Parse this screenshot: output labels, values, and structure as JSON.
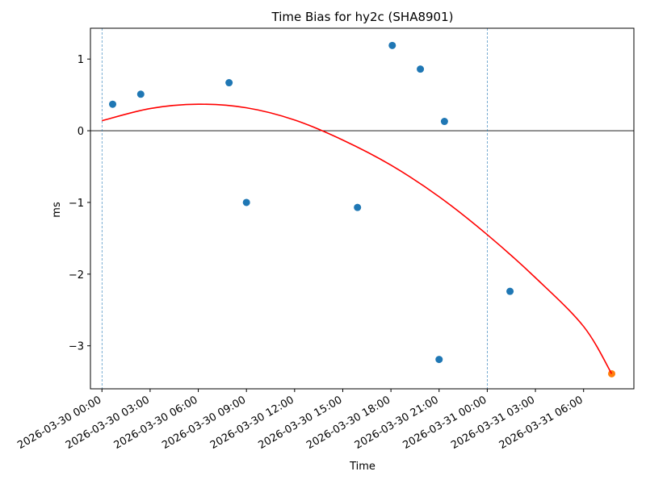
{
  "chart_data": {
    "type": "scatter",
    "title": "Time Bias for hy2c (SHA8901)",
    "xlabel": "Time",
    "ylabel": "ms",
    "x_unit": "datetime",
    "xlim": [
      "2026-03-29 23:17",
      "2026-03-31 09:08"
    ],
    "ylim": [
      -3.6,
      1.43
    ],
    "x_ticks": [
      "2026-03-30 00:00",
      "2026-03-30 03:00",
      "2026-03-30 06:00",
      "2026-03-30 09:00",
      "2026-03-30 12:00",
      "2026-03-30 15:00",
      "2026-03-30 18:00",
      "2026-03-30 21:00",
      "2026-03-31 00:00",
      "2026-03-31 03:00",
      "2026-03-31 06:00"
    ],
    "y_ticks": [
      1,
      0,
      -1,
      -2,
      -3
    ],
    "y_tick_labels": [
      "1",
      "0",
      "−1",
      "−2",
      "−3"
    ],
    "grid": false,
    "zero_line": {
      "y": 0,
      "color": "#000000"
    },
    "vertical_lines": [
      {
        "x": "2026-03-30 00:00",
        "color": "#1f77b4",
        "style": "dashed"
      },
      {
        "x": "2026-03-31 00:00",
        "color": "#1f77b4",
        "style": "dashed"
      }
    ],
    "series": [
      {
        "kind": "points",
        "color": "#1f77b4",
        "points": [
          {
            "x": "2026-03-30 00:40",
            "y": 0.37
          },
          {
            "x": "2026-03-30 02:25",
            "y": 0.51
          },
          {
            "x": "2026-03-30 07:55",
            "y": 0.67
          },
          {
            "x": "2026-03-30 09:00",
            "y": -1.0
          },
          {
            "x": "2026-03-30 15:55",
            "y": -1.07
          },
          {
            "x": "2026-03-30 18:05",
            "y": 1.19
          },
          {
            "x": "2026-03-30 19:50",
            "y": 0.86
          },
          {
            "x": "2026-03-30 21:00",
            "y": -3.19
          },
          {
            "x": "2026-03-30 21:20",
            "y": 0.13
          },
          {
            "x": "2026-03-31 01:25",
            "y": -2.24
          }
        ]
      },
      {
        "kind": "points",
        "color": "#ff7f0e",
        "points": [
          {
            "x": "2026-03-31 07:45",
            "y": -3.39
          }
        ]
      },
      {
        "kind": "curve",
        "color": "#ff0000",
        "points": [
          {
            "x": "2026-03-30 00:00",
            "y": 0.14
          },
          {
            "x": "2026-03-30 03:00",
            "y": 0.31
          },
          {
            "x": "2026-03-30 06:00",
            "y": 0.37
          },
          {
            "x": "2026-03-30 09:00",
            "y": 0.32
          },
          {
            "x": "2026-03-30 12:00",
            "y": 0.15
          },
          {
            "x": "2026-03-30 15:00",
            "y": -0.13
          },
          {
            "x": "2026-03-30 18:00",
            "y": -0.48
          },
          {
            "x": "2026-03-30 21:00",
            "y": -0.92
          },
          {
            "x": "2026-03-31 00:00",
            "y": -1.45
          },
          {
            "x": "2026-03-31 03:00",
            "y": -2.05
          },
          {
            "x": "2026-03-31 06:00",
            "y": -2.73
          },
          {
            "x": "2026-03-31 07:45",
            "y": -3.39
          }
        ]
      }
    ]
  }
}
